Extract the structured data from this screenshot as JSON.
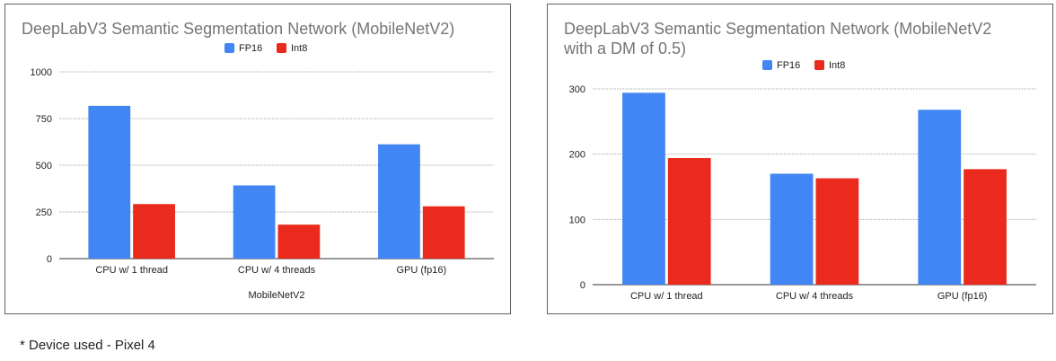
{
  "chart_data": [
    {
      "type": "bar",
      "title": "DeepLabV3 Semantic Segmentation Network (MobileNetV2)",
      "xlabel": "MobileNetV2",
      "ylabel": "",
      "categories": [
        "CPU w/ 1 thread",
        "CPU w/ 4 threads",
        "GPU (fp16)"
      ],
      "series": [
        {
          "name": "FP16",
          "color": "#4285f4",
          "values": [
            818,
            392,
            612
          ]
        },
        {
          "name": "Int8",
          "color": "#ea2a1c",
          "values": [
            292,
            182,
            280
          ]
        }
      ],
      "ylim": [
        0,
        1000
      ],
      "yticks": [
        0,
        250,
        500,
        750,
        1000
      ],
      "grid": true,
      "legend": "top-center"
    },
    {
      "type": "bar",
      "title": "DeepLabV3 Semantic Segmentation Network (MobileNetV2\nwith a DM of 0.5)",
      "xlabel": "",
      "ylabel": "",
      "categories": [
        "CPU w/ 1 thread",
        "CPU w/ 4 threads",
        "GPU (fp16)"
      ],
      "series": [
        {
          "name": "FP16",
          "color": "#4285f4",
          "values": [
            294,
            170,
            268
          ]
        },
        {
          "name": "Int8",
          "color": "#ea2a1c",
          "values": [
            194,
            163,
            177
          ]
        }
      ],
      "ylim": [
        0,
        300
      ],
      "yticks": [
        0,
        100,
        200,
        300
      ],
      "grid": true,
      "legend": "top-center"
    }
  ],
  "footnote": "* Device used - Pixel 4"
}
